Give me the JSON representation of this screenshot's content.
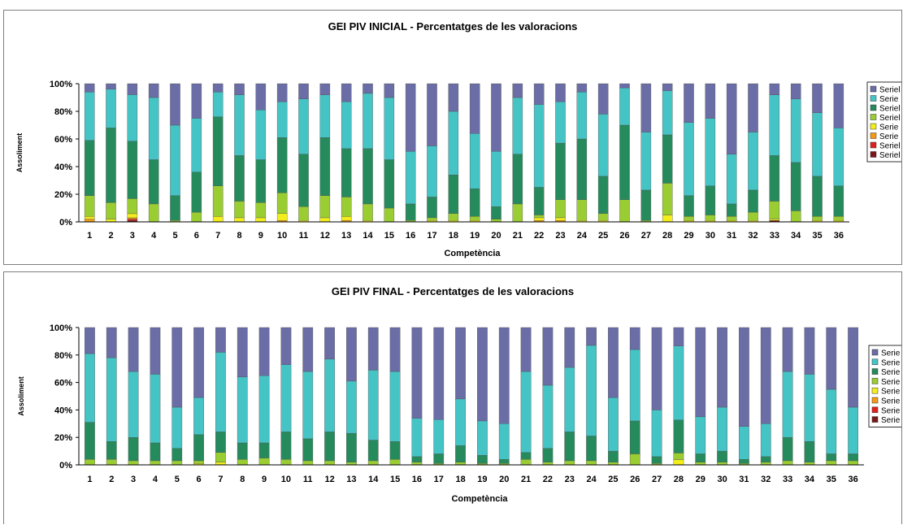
{
  "colors": [
    "#7B1717",
    "#E02020",
    "#F59A16",
    "#F3EE1B",
    "#9ACD32",
    "#258A5C",
    "#45C4C6",
    "#6A6DA6"
  ],
  "chart_data": [
    {
      "type": "bar",
      "stacked": "percent",
      "title": "GEI PIV INICIAL - Percentatges de les valoracions",
      "xlabel": "Competència",
      "ylabel": "Assoliment",
      "yticks": [
        "0%",
        "20%",
        "40%",
        "60%",
        "80%",
        "100%"
      ],
      "ylim": [
        0,
        100
      ],
      "legend_position": "right",
      "categories": [
        "1",
        "2",
        "3",
        "4",
        "5",
        "6",
        "7",
        "8",
        "9",
        "10",
        "11",
        "12",
        "13",
        "14",
        "15",
        "16",
        "17",
        "18",
        "19",
        "20",
        "21",
        "22",
        "23",
        "24",
        "25",
        "26",
        "27",
        "28",
        "29",
        "30",
        "31",
        "32",
        "33",
        "34",
        "35",
        "36"
      ],
      "series": [
        {
          "name": "Seriel",
          "values": [
            0,
            0,
            1,
            0,
            0,
            0,
            0,
            0,
            0,
            0,
            0,
            0,
            0,
            0,
            0,
            0,
            0,
            0,
            0,
            0,
            0,
            0,
            0,
            0,
            0,
            0,
            0,
            0,
            0,
            0,
            0,
            0,
            1,
            0,
            0,
            0
          ]
        },
        {
          "name": "Seriel",
          "values": [
            0,
            0,
            1,
            0,
            0,
            0,
            0,
            0,
            0,
            0,
            0,
            0,
            0,
            0,
            0,
            0,
            0,
            0,
            0,
            0,
            0,
            0,
            0,
            0,
            0,
            0,
            0,
            0,
            0,
            0,
            0,
            0,
            0,
            0,
            0,
            0
          ]
        },
        {
          "name": "Serie",
          "values": [
            2,
            0,
            1,
            0,
            0,
            0,
            0,
            0,
            0,
            1,
            0,
            0,
            1,
            0,
            0,
            0,
            0,
            0,
            0,
            0,
            0,
            1,
            1,
            0,
            0,
            0,
            0,
            0,
            0,
            0,
            0,
            0,
            0,
            0,
            0,
            0
          ]
        },
        {
          "name": "Serie",
          "values": [
            2,
            2,
            3,
            0,
            0,
            0,
            4,
            3,
            3,
            5,
            1,
            3,
            3,
            1,
            0,
            0,
            1,
            1,
            1,
            0,
            0,
            2,
            2,
            1,
            1,
            0,
            0,
            5,
            1,
            1,
            1,
            1,
            1,
            0,
            1,
            1
          ]
        },
        {
          "name": "Seriel",
          "values": [
            15,
            12,
            11,
            13,
            1,
            7,
            22,
            12,
            11,
            15,
            10,
            16,
            14,
            12,
            10,
            1,
            2,
            5,
            3,
            2,
            13,
            2,
            13,
            15,
            5,
            16,
            1,
            23,
            3,
            4,
            3,
            6,
            13,
            8,
            3,
            3
          ]
        },
        {
          "name": "Seriel",
          "values": [
            40,
            54,
            42,
            32,
            18,
            29,
            50,
            33,
            31,
            40,
            38,
            42,
            35,
            40,
            35,
            12,
            15,
            28,
            20,
            9,
            36,
            20,
            41,
            44,
            27,
            54,
            22,
            35,
            15,
            21,
            9,
            16,
            33,
            35,
            29,
            22
          ]
        },
        {
          "name": "Serie",
          "values": [
            35,
            28,
            34,
            45,
            51,
            39,
            18,
            44,
            36,
            26,
            40,
            31,
            34,
            40,
            45,
            38,
            37,
            46,
            40,
            40,
            41,
            60,
            30,
            34,
            45,
            27,
            42,
            32,
            53,
            49,
            36,
            42,
            44,
            46,
            46,
            42
          ]
        },
        {
          "name": "Seriel",
          "values": [
            6,
            4,
            8,
            10,
            30,
            25,
            6,
            8,
            19,
            13,
            11,
            8,
            13,
            7,
            10,
            49,
            45,
            20,
            36,
            49,
            10,
            15,
            13,
            6,
            22,
            3,
            35,
            5,
            28,
            25,
            51,
            35,
            8,
            11,
            21,
            32
          ]
        }
      ]
    },
    {
      "type": "bar",
      "stacked": "percent",
      "title": "GEI PIV FINAL - Percentatges de les valoracions",
      "xlabel": "Competència",
      "ylabel": "Assoliment",
      "yticks": [
        "0%",
        "20%",
        "40%",
        "60%",
        "80%",
        "100%"
      ],
      "ylim": [
        0,
        100
      ],
      "legend_position": "right",
      "categories": [
        "1",
        "2",
        "3",
        "4",
        "5",
        "6",
        "7",
        "8",
        "9",
        "10",
        "11",
        "12",
        "13",
        "14",
        "15",
        "16",
        "17",
        "18",
        "19",
        "20",
        "21",
        "22",
        "23",
        "24",
        "25",
        "26",
        "27",
        "28",
        "29",
        "30",
        "31",
        "32",
        "33",
        "34",
        "35",
        "36"
      ],
      "series": [
        {
          "name": "Serie",
          "values": [
            0,
            0,
            0,
            0,
            0,
            0,
            0,
            0,
            0,
            0,
            0,
            0,
            0,
            0,
            0,
            0,
            0,
            0,
            0,
            0,
            0,
            0,
            0,
            0,
            0,
            0,
            0,
            0,
            0,
            0,
            0,
            0,
            0,
            0,
            0,
            0
          ]
        },
        {
          "name": "Serie",
          "values": [
            0,
            0,
            0,
            0,
            0,
            0,
            0,
            0,
            0,
            0,
            0,
            0,
            0,
            0,
            0,
            0,
            0,
            0,
            0,
            0,
            0,
            0,
            0,
            0,
            0,
            0,
            0,
            0,
            0,
            0,
            0,
            0,
            0,
            0,
            0,
            0
          ]
        },
        {
          "name": "Serie",
          "values": [
            0,
            0,
            0,
            0,
            0,
            0,
            0,
            0,
            0,
            0,
            0,
            0,
            0,
            0,
            0,
            0,
            0,
            0,
            0,
            0,
            0,
            0,
            0,
            0,
            0,
            0,
            0,
            0,
            0,
            0,
            0,
            0,
            0,
            0,
            0,
            0
          ]
        },
        {
          "name": "Serie",
          "values": [
            0,
            0,
            0,
            0,
            0,
            1,
            2,
            0,
            0,
            0,
            0,
            0,
            0,
            0,
            0,
            0,
            0,
            0,
            0,
            0,
            0,
            0,
            0,
            0,
            0,
            0,
            0,
            4,
            0,
            0,
            0,
            0,
            0,
            0,
            0,
            0
          ]
        },
        {
          "name": "Serie",
          "values": [
            4,
            4,
            3,
            3,
            3,
            2,
            7,
            4,
            5,
            4,
            3,
            3,
            2,
            3,
            4,
            2,
            1,
            2,
            1,
            1,
            4,
            2,
            3,
            3,
            2,
            8,
            1,
            5,
            2,
            2,
            1,
            2,
            3,
            2,
            3,
            3
          ]
        },
        {
          "name": "Serie",
          "values": [
            27,
            13,
            17,
            13,
            9,
            19,
            15,
            12,
            11,
            20,
            16,
            21,
            21,
            15,
            13,
            4,
            7,
            12,
            6,
            3,
            5,
            10,
            21,
            18,
            8,
            24,
            5,
            25,
            6,
            8,
            3,
            4,
            17,
            15,
            5,
            5
          ]
        },
        {
          "name": "Serie",
          "values": [
            50,
            61,
            48,
            50,
            30,
            27,
            58,
            48,
            49,
            49,
            49,
            53,
            38,
            51,
            51,
            28,
            25,
            34,
            25,
            26,
            59,
            46,
            47,
            66,
            39,
            52,
            34,
            56,
            27,
            32,
            24,
            24,
            48,
            49,
            47,
            34
          ]
        },
        {
          "name": "Serie",
          "values": [
            19,
            22,
            32,
            34,
            58,
            51,
            18,
            36,
            35,
            27,
            32,
            23,
            39,
            31,
            32,
            66,
            67,
            52,
            68,
            70,
            32,
            42,
            29,
            13,
            51,
            16,
            60,
            14,
            65,
            58,
            72,
            70,
            32,
            34,
            45,
            58
          ]
        }
      ]
    }
  ]
}
